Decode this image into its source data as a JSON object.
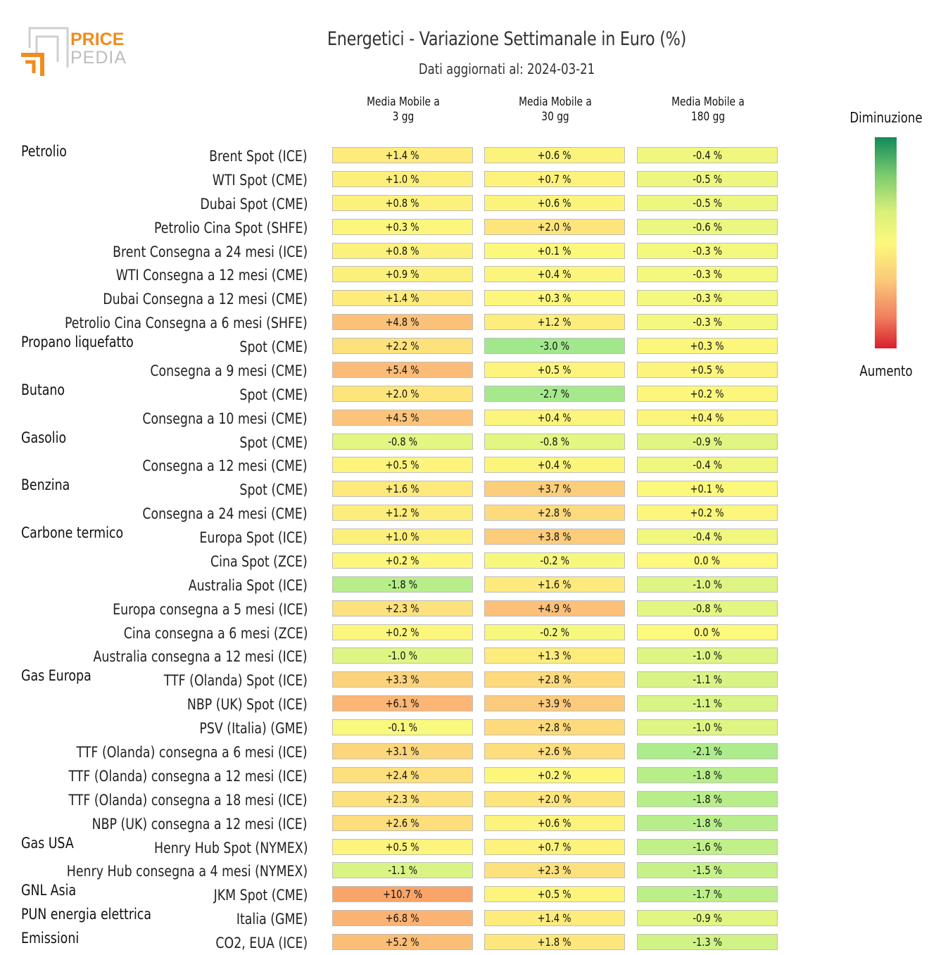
{
  "header": {
    "logo_top": "PRICE",
    "logo_bottom": "PEDIA",
    "title": "Energetici - Variazione Settimanale in Euro (%)",
    "subtitle": "Dati aggiornati al: 2024-03-21"
  },
  "columns": [
    "Media Mobile a\n3 gg",
    "Media Mobile a\n30 gg",
    "Media Mobile a\n180 gg"
  ],
  "legend": {
    "top_label": "Diminuzione",
    "bottom_label": "Aumento",
    "colors": [
      "#138a5a",
      "#7ccb6d",
      "#fcf97c",
      "#fbc87a",
      "#d91f2c"
    ]
  },
  "chart_data": {
    "type": "table",
    "title": "Energetici - Variazione Settimanale in Euro (%)",
    "unit": "%",
    "groups": [
      {
        "name": "Petrolio",
        "rows": [
          {
            "label": "Brent Spot (ICE)",
            "values": [
              1.4,
              0.6,
              -0.4
            ]
          },
          {
            "label": "WTI Spot (CME)",
            "values": [
              1.0,
              0.7,
              -0.5
            ]
          },
          {
            "label": "Dubai Spot (CME)",
            "values": [
              0.8,
              0.6,
              -0.5
            ]
          },
          {
            "label": "Petrolio Cina Spot (SHFE)",
            "values": [
              0.3,
              2.0,
              -0.6
            ]
          },
          {
            "label": "Brent Consegna a 24 mesi (ICE)",
            "values": [
              0.8,
              0.1,
              -0.3
            ]
          },
          {
            "label": "WTI Consegna a 12 mesi (CME)",
            "values": [
              0.9,
              0.4,
              -0.3
            ]
          },
          {
            "label": "Dubai Consegna a 12 mesi (CME)",
            "values": [
              1.4,
              0.3,
              -0.3
            ]
          },
          {
            "label": "Petrolio Cina Consegna a 6 mesi (SHFE)",
            "values": [
              4.8,
              1.2,
              -0.3
            ]
          }
        ]
      },
      {
        "name": "Propano liquefatto",
        "rows": [
          {
            "label": "Spot (CME)",
            "values": [
              2.2,
              -3.0,
              0.3
            ]
          },
          {
            "label": "Consegna a 9 mesi (CME)",
            "values": [
              5.4,
              0.5,
              0.5
            ]
          }
        ]
      },
      {
        "name": "Butano",
        "rows": [
          {
            "label": "Spot (CME)",
            "values": [
              2.0,
              -2.7,
              0.2
            ]
          },
          {
            "label": "Consegna a 10 mesi (CME)",
            "values": [
              4.5,
              0.4,
              0.4
            ]
          }
        ]
      },
      {
        "name": "Gasolio",
        "rows": [
          {
            "label": "Spot (CME)",
            "values": [
              -0.8,
              -0.8,
              -0.9
            ]
          },
          {
            "label": "Consegna a 12 mesi (CME)",
            "values": [
              0.5,
              0.4,
              -0.4
            ]
          }
        ]
      },
      {
        "name": "Benzina",
        "rows": [
          {
            "label": "Spot (CME)",
            "values": [
              1.6,
              3.7,
              0.1
            ]
          },
          {
            "label": "Consegna a 24 mesi (CME)",
            "values": [
              1.2,
              2.8,
              0.2
            ]
          }
        ]
      },
      {
        "name": "Carbone termico",
        "rows": [
          {
            "label": "Europa Spot (ICE)",
            "values": [
              1.0,
              3.8,
              -0.4
            ]
          },
          {
            "label": "Cina Spot (ZCE)",
            "values": [
              0.2,
              -0.2,
              0.0
            ]
          },
          {
            "label": "Australia Spot (ICE)",
            "values": [
              -1.8,
              1.6,
              -1.0
            ]
          },
          {
            "label": "Europa consegna a 5 mesi (ICE)",
            "values": [
              2.3,
              4.9,
              -0.8
            ]
          },
          {
            "label": "Cina consegna a 6 mesi (ZCE)",
            "values": [
              0.2,
              -0.2,
              0.0
            ]
          },
          {
            "label": "Australia consegna a 12 mesi (ICE)",
            "values": [
              -1.0,
              1.3,
              -1.0
            ]
          }
        ]
      },
      {
        "name": "Gas Europa",
        "rows": [
          {
            "label": "TTF (Olanda) Spot (ICE)",
            "values": [
              3.3,
              2.8,
              -1.1
            ]
          },
          {
            "label": "NBP (UK) Spot (ICE)",
            "values": [
              6.1,
              3.9,
              -1.1
            ]
          },
          {
            "label": "PSV (Italia) (GME)",
            "values": [
              -0.1,
              2.8,
              -1.0
            ]
          },
          {
            "label": "TTF (Olanda) consegna a 6 mesi (ICE)",
            "values": [
              3.1,
              2.6,
              -2.1
            ]
          },
          {
            "label": "TTF (Olanda) consegna a 12 mesi (ICE)",
            "values": [
              2.4,
              0.2,
              -1.8
            ]
          },
          {
            "label": "TTF (Olanda) consegna a 18 mesi (ICE)",
            "values": [
              2.3,
              2.0,
              -1.8
            ]
          },
          {
            "label": "NBP (UK) consegna a 12 mesi (ICE)",
            "values": [
              2.6,
              0.6,
              -1.8
            ]
          }
        ]
      },
      {
        "name": "Gas USA",
        "rows": [
          {
            "label": "Henry Hub Spot (NYMEX)",
            "values": [
              0.5,
              0.7,
              -1.6
            ]
          },
          {
            "label": "Henry Hub consegna a 4 mesi (NYMEX)",
            "values": [
              -1.1,
              2.3,
              -1.5
            ]
          }
        ]
      },
      {
        "name": "GNL Asia",
        "rows": [
          {
            "label": "JKM Spot (CME)",
            "values": [
              10.7,
              0.5,
              -1.7
            ]
          }
        ]
      },
      {
        "name": "PUN energia elettrica",
        "rows": [
          {
            "label": "Italia (GME)",
            "values": [
              6.8,
              1.4,
              -0.9
            ]
          }
        ]
      },
      {
        "name": "Emissioni",
        "rows": [
          {
            "label": "CO2, EUA (ICE)",
            "values": [
              5.2,
              1.8,
              -1.3
            ]
          }
        ]
      }
    ]
  }
}
